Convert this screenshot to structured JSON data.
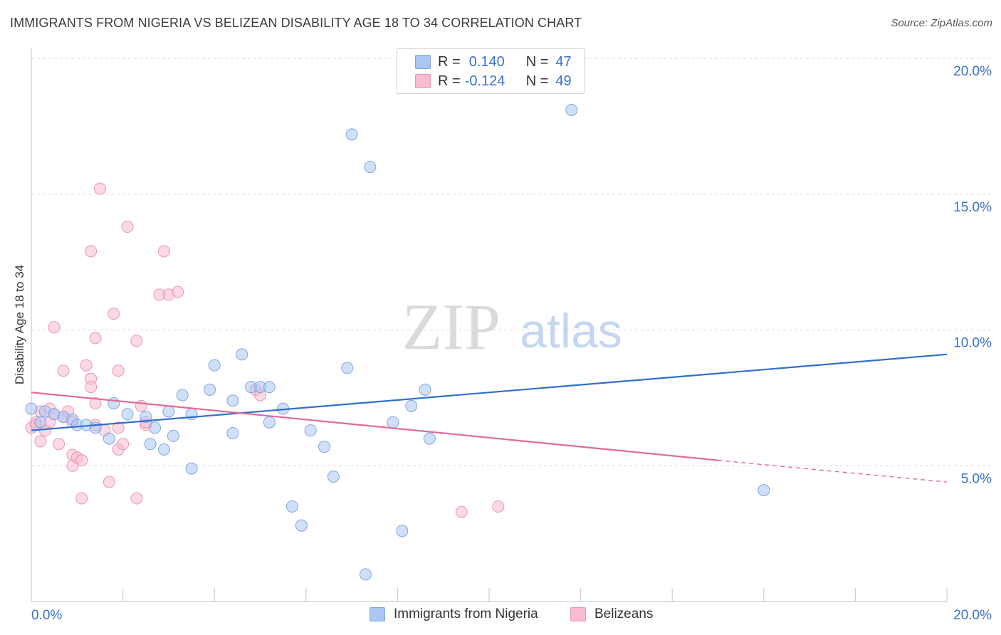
{
  "header": {
    "title": "IMMIGRANTS FROM NIGERIA VS BELIZEAN DISABILITY AGE 18 TO 34 CORRELATION CHART",
    "source": "Source: ZipAtlas.com"
  },
  "legend": {
    "rows": [
      {
        "r_label": "R =",
        "r_value": "0.140",
        "n_label": "N =",
        "n_value": "47"
      },
      {
        "r_label": "R =",
        "r_value": "-0.124",
        "n_label": "N =",
        "n_value": "49"
      }
    ]
  },
  "bottom_legend": [
    "Immigrants from Nigeria",
    "Belizeans"
  ],
  "watermark": {
    "zip": "ZIP",
    "atlas": "atlas"
  },
  "colors": {
    "blue_fill": "#aac6f3",
    "blue_stroke": "#7fa6e0",
    "blue_line": "#2f6fd1",
    "pink_fill": "#f7bcd0",
    "pink_stroke": "#ec95b3",
    "pink_line": "#e46a96",
    "tick_label": "#3b6fd0",
    "grid": "#d8d8d8"
  },
  "chart_data": {
    "type": "scatter",
    "title": "IMMIGRANTS FROM NIGERIA VS BELIZEAN DISABILITY AGE 18 TO 34 CORRELATION CHART",
    "xlabel": "",
    "ylabel": "Disability Age 18 to 34",
    "xlim": [
      0,
      20
    ],
    "ylim": [
      0,
      20
    ],
    "x_tick_labels": [
      "0.0%",
      "20.0%"
    ],
    "y_ticks": [
      5,
      10,
      15,
      20
    ],
    "y_tick_labels": [
      "5.0%",
      "10.0%",
      "15.0%",
      "20.0%"
    ],
    "grid": true,
    "legend_position": "top-center",
    "series": [
      {
        "name": "Immigrants from Nigeria",
        "color": "#aac6f3",
        "r": 0.14,
        "n": 47,
        "trend": {
          "x0": 0,
          "y0": 6.3,
          "x1": 20,
          "y1": 9.1
        },
        "points": [
          [
            0.0,
            7.1
          ],
          [
            0.2,
            6.6
          ],
          [
            0.3,
            7.0
          ],
          [
            0.5,
            6.9
          ],
          [
            0.7,
            6.8
          ],
          [
            0.9,
            6.7
          ],
          [
            1.0,
            6.5
          ],
          [
            1.2,
            6.5
          ],
          [
            1.4,
            6.4
          ],
          [
            1.7,
            6.0
          ],
          [
            1.8,
            7.3
          ],
          [
            2.1,
            6.9
          ],
          [
            2.5,
            6.8
          ],
          [
            2.6,
            5.8
          ],
          [
            2.7,
            6.4
          ],
          [
            2.9,
            5.6
          ],
          [
            3.0,
            7.0
          ],
          [
            3.1,
            6.1
          ],
          [
            3.3,
            7.6
          ],
          [
            3.5,
            6.9
          ],
          [
            3.5,
            4.9
          ],
          [
            3.9,
            7.8
          ],
          [
            4.0,
            8.7
          ],
          [
            4.4,
            7.4
          ],
          [
            4.4,
            6.2
          ],
          [
            4.6,
            9.1
          ],
          [
            4.8,
            7.9
          ],
          [
            5.0,
            7.9
          ],
          [
            5.2,
            7.9
          ],
          [
            5.2,
            6.6
          ],
          [
            5.5,
            7.1
          ],
          [
            5.7,
            3.5
          ],
          [
            5.9,
            2.8
          ],
          [
            6.1,
            6.3
          ],
          [
            6.4,
            5.7
          ],
          [
            6.6,
            4.6
          ],
          [
            6.9,
            8.6
          ],
          [
            7.0,
            17.2
          ],
          [
            7.3,
            1.0
          ],
          [
            7.4,
            16.0
          ],
          [
            7.9,
            6.6
          ],
          [
            8.1,
            2.6
          ],
          [
            8.3,
            7.2
          ],
          [
            8.6,
            7.8
          ],
          [
            8.7,
            6.0
          ],
          [
            11.8,
            18.1
          ],
          [
            16.0,
            4.1
          ]
        ]
      },
      {
        "name": "Belizeans",
        "color": "#f7bcd0",
        "r": -0.124,
        "n": 49,
        "trend": {
          "x0": 0,
          "y0": 7.7,
          "x1": 15,
          "y1": 5.2
        },
        "trend_dashed": {
          "x0": 15,
          "y0": 5.2,
          "x1": 20,
          "y1": 4.4
        },
        "points": [
          [
            0.0,
            6.4
          ],
          [
            0.1,
            6.6
          ],
          [
            0.1,
            6.5
          ],
          [
            0.2,
            7.0
          ],
          [
            0.2,
            5.9
          ],
          [
            0.3,
            6.3
          ],
          [
            0.4,
            6.6
          ],
          [
            0.4,
            7.1
          ],
          [
            0.5,
            6.9
          ],
          [
            0.5,
            10.1
          ],
          [
            0.6,
            5.8
          ],
          [
            0.7,
            6.8
          ],
          [
            0.7,
            8.5
          ],
          [
            0.8,
            7.0
          ],
          [
            0.9,
            6.6
          ],
          [
            0.9,
            5.4
          ],
          [
            0.9,
            5.0
          ],
          [
            1.0,
            5.3
          ],
          [
            1.1,
            5.2
          ],
          [
            1.1,
            3.8
          ],
          [
            1.2,
            8.7
          ],
          [
            1.3,
            12.9
          ],
          [
            1.3,
            8.2
          ],
          [
            1.3,
            7.9
          ],
          [
            1.4,
            6.5
          ],
          [
            1.4,
            7.3
          ],
          [
            1.4,
            9.7
          ],
          [
            1.5,
            15.2
          ],
          [
            1.6,
            6.3
          ],
          [
            1.7,
            4.4
          ],
          [
            1.8,
            10.6
          ],
          [
            1.9,
            6.4
          ],
          [
            1.9,
            5.6
          ],
          [
            1.9,
            8.5
          ],
          [
            2.0,
            5.8
          ],
          [
            2.1,
            13.8
          ],
          [
            2.3,
            9.6
          ],
          [
            2.3,
            3.8
          ],
          [
            2.4,
            7.2
          ],
          [
            2.5,
            6.5
          ],
          [
            2.5,
            6.6
          ],
          [
            2.8,
            11.3
          ],
          [
            2.9,
            12.9
          ],
          [
            3.0,
            11.3
          ],
          [
            3.2,
            11.4
          ],
          [
            4.9,
            7.8
          ],
          [
            5.0,
            7.6
          ],
          [
            9.4,
            3.3
          ],
          [
            10.2,
            3.5
          ]
        ]
      }
    ]
  }
}
